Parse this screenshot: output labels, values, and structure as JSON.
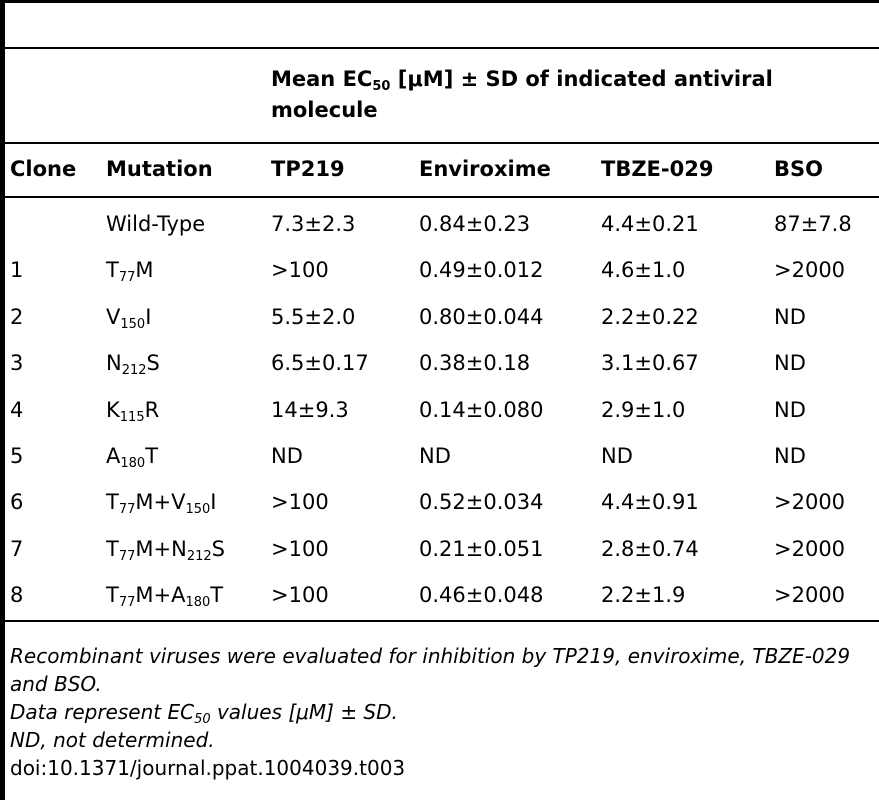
{
  "table": {
    "group_header": {
      "text": "Mean EC",
      "sub": "50",
      "rest": " [μM] ± SD of indicated antiviral molecule"
    },
    "columns": [
      "Clone",
      "Mutation",
      "TP219",
      "Enviroxime",
      "TBZE-029",
      "BSO"
    ],
    "rows": [
      {
        "clone": "",
        "mut": [
          {
            "t": "Wild-Type"
          }
        ],
        "tp219": "7.3±2.3",
        "enviroxime": "0.84±0.23",
        "tbze": "4.4±0.21",
        "bso": "87±7.8"
      },
      {
        "clone": "1",
        "mut": [
          {
            "t": "T"
          },
          {
            "s": "77"
          },
          {
            "t": "M"
          }
        ],
        "tp219": ">100",
        "enviroxime": "0.49±0.012",
        "tbze": "4.6±1.0",
        "bso": ">2000"
      },
      {
        "clone": "2",
        "mut": [
          {
            "t": "V"
          },
          {
            "s": "150"
          },
          {
            "t": "I"
          }
        ],
        "tp219": "5.5±2.0",
        "enviroxime": "0.80±0.044",
        "tbze": "2.2±0.22",
        "bso": "ND"
      },
      {
        "clone": "3",
        "mut": [
          {
            "t": "N"
          },
          {
            "s": "212"
          },
          {
            "t": "S"
          }
        ],
        "tp219": "6.5±0.17",
        "enviroxime": "0.38±0.18",
        "tbze": "3.1±0.67",
        "bso": "ND"
      },
      {
        "clone": "4",
        "mut": [
          {
            "t": "K"
          },
          {
            "s": "115"
          },
          {
            "t": "R"
          }
        ],
        "tp219": "14±9.3",
        "enviroxime": "0.14±0.080",
        "tbze": "2.9±1.0",
        "bso": "ND"
      },
      {
        "clone": "5",
        "mut": [
          {
            "t": "A"
          },
          {
            "s": "180"
          },
          {
            "t": "T"
          }
        ],
        "tp219": "ND",
        "enviroxime": "ND",
        "tbze": "ND",
        "bso": "ND"
      },
      {
        "clone": "6",
        "mut": [
          {
            "t": "T"
          },
          {
            "s": "77"
          },
          {
            "t": "M+V"
          },
          {
            "s": "150"
          },
          {
            "t": "I"
          }
        ],
        "tp219": ">100",
        "enviroxime": "0.52±0.034",
        "tbze": "4.4±0.91",
        "bso": ">2000"
      },
      {
        "clone": "7",
        "mut": [
          {
            "t": "T"
          },
          {
            "s": "77"
          },
          {
            "t": "M+N"
          },
          {
            "s": "212"
          },
          {
            "t": "S"
          }
        ],
        "tp219": ">100",
        "enviroxime": "0.21±0.051",
        "tbze": "2.8±0.74",
        "bso": ">2000"
      },
      {
        "clone": "8",
        "mut": [
          {
            "t": "T"
          },
          {
            "s": "77"
          },
          {
            "t": "M+A"
          },
          {
            "s": "180"
          },
          {
            "t": "T"
          }
        ],
        "tp219": ">100",
        "enviroxime": "0.46±0.048",
        "tbze": "2.2±1.9",
        "bso": ">2000"
      }
    ]
  },
  "footnotes": {
    "line1": "Recombinant viruses were evaluated for inhibition by TP219, enviroxime, TBZE-029 and BSO.",
    "line2_pre": "Data represent EC",
    "line2_sub": "50",
    "line2_post": " values [μM] ± SD.",
    "line3": "ND, not determined.",
    "doi": "doi:10.1371/journal.ppat.1004039.t003"
  }
}
